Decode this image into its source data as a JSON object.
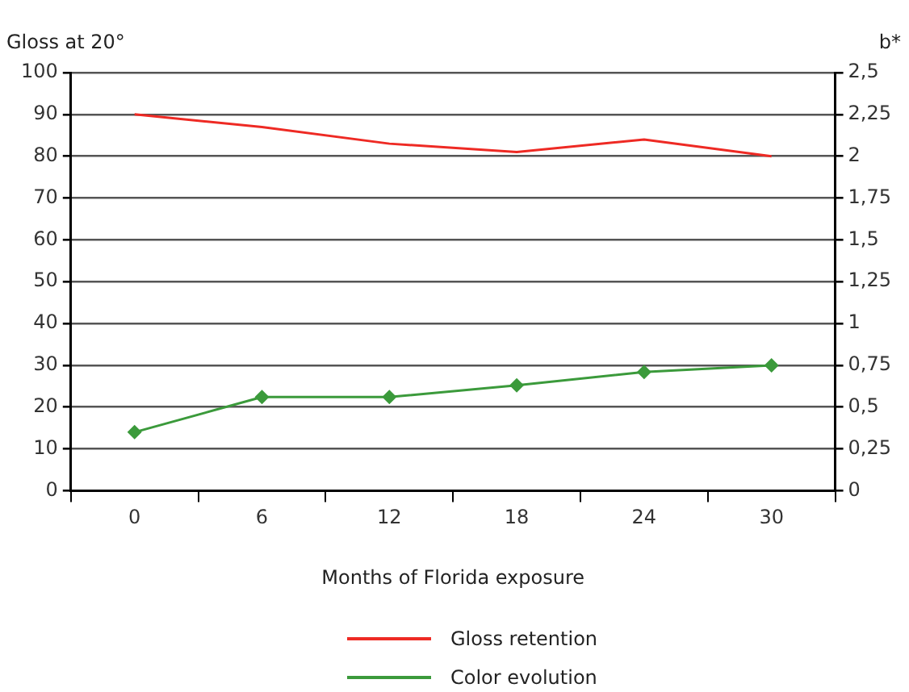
{
  "chart_data": {
    "type": "line",
    "xlabel": "Months of Florida exposure",
    "ylabel": "Gloss at 20°",
    "y2label": "b*",
    "categories": [
      "0",
      "6",
      "12",
      "18",
      "24",
      "30"
    ],
    "series": [
      {
        "name": "Gloss retention",
        "color": "#ee2a24",
        "values": [
          90,
          87,
          83,
          81,
          84,
          80
        ],
        "marker": "none"
      },
      {
        "name": "Color evolution",
        "color": "#3b9a3b",
        "values": [
          0.35,
          0.56,
          0.56,
          0.63,
          0.71,
          0.75
        ],
        "axis": "y2",
        "marker": "diamond"
      }
    ],
    "ylim": [
      0,
      100
    ],
    "yticks": [
      0,
      10,
      20,
      30,
      40,
      50,
      60,
      70,
      80,
      90,
      100
    ],
    "y2lim": [
      0,
      2.5
    ],
    "y2ticks": [
      0,
      {
        "value": 0.25,
        "label": "0,25"
      },
      {
        "value": 0.5,
        "label": "0,5"
      },
      {
        "value": 0.75,
        "label": "0,75"
      },
      1,
      {
        "value": 1.25,
        "label": "1,25"
      },
      {
        "value": 1.5,
        "label": "1,5"
      },
      {
        "value": 1.75,
        "label": "1,75"
      },
      2,
      {
        "value": 2.25,
        "label": "2,25"
      },
      {
        "value": 2.5,
        "label": "2,5"
      }
    ],
    "grid": "y",
    "legend": "bottom",
    "line_style": "solid"
  }
}
